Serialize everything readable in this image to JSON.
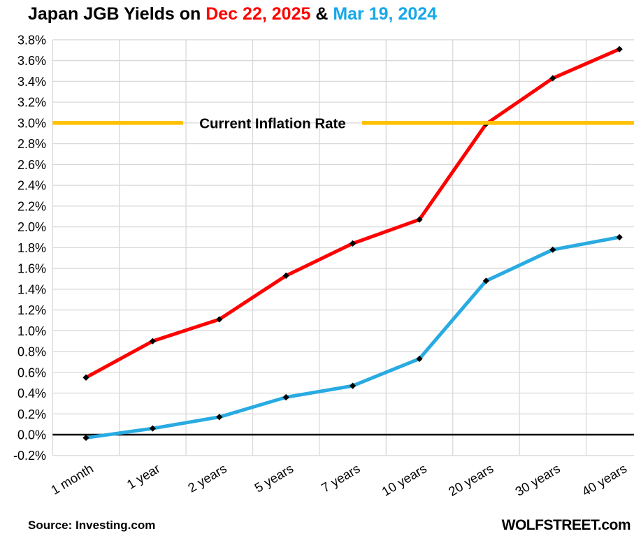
{
  "title": {
    "segments": [
      {
        "text": "Japan JGB Yields on ",
        "color": "#000000"
      },
      {
        "text": "Dec 22, 2025",
        "color": "#FF0000"
      },
      {
        "text": " & ",
        "color": "#000000"
      },
      {
        "text": "Mar 19, 2024",
        "color": "#16A8E8"
      }
    ]
  },
  "footer": {
    "source": "Source: Investing.com",
    "brand": "WOLFSTREET.com"
  },
  "colors": {
    "red_series": "#FF0000",
    "blue_series": "#29ABE2",
    "inflation_line": "#FFC000",
    "gridline": "#D9D9D9",
    "zero_axis": "#000000",
    "marker": "#000000"
  },
  "chart_data": {
    "type": "line",
    "title": "Japan JGB Yields on Dec 22, 2025 & Mar 19, 2024",
    "categories": [
      "1 month",
      "1 year",
      "2 years",
      "5 years",
      "7 years",
      "10 years",
      "20 years",
      "30 years",
      "40 years"
    ],
    "series": [
      {
        "name": "Dec 22, 2025",
        "color": "#FF0000",
        "values": [
          0.55,
          0.9,
          1.11,
          1.53,
          1.84,
          2.07,
          2.99,
          3.43,
          3.71
        ]
      },
      {
        "name": "Mar 19, 2024",
        "color": "#29ABE2",
        "values": [
          -0.03,
          0.06,
          0.17,
          0.36,
          0.47,
          0.73,
          1.48,
          1.78,
          1.9
        ]
      }
    ],
    "annotation": {
      "label": "Current Inflation Rate",
      "value": 3.0,
      "color": "#FFC000"
    },
    "xlabel": "",
    "ylabel": "",
    "ylim": [
      -0.2,
      3.8
    ],
    "ystep": 0.2,
    "y_tick_labels": [
      "3.8%",
      "3.6%",
      "3.4%",
      "3.2%",
      "3.0%",
      "2.8%",
      "2.6%",
      "2.4%",
      "2.2%",
      "2.0%",
      "1.8%",
      "1.6%",
      "1.4%",
      "1.2%",
      "1.0%",
      "0.8%",
      "0.6%",
      "0.4%",
      "0.2%",
      "0.0%",
      "-0.2%"
    ],
    "grid": true,
    "legend_position": "none",
    "marker_shape": "diamond"
  }
}
